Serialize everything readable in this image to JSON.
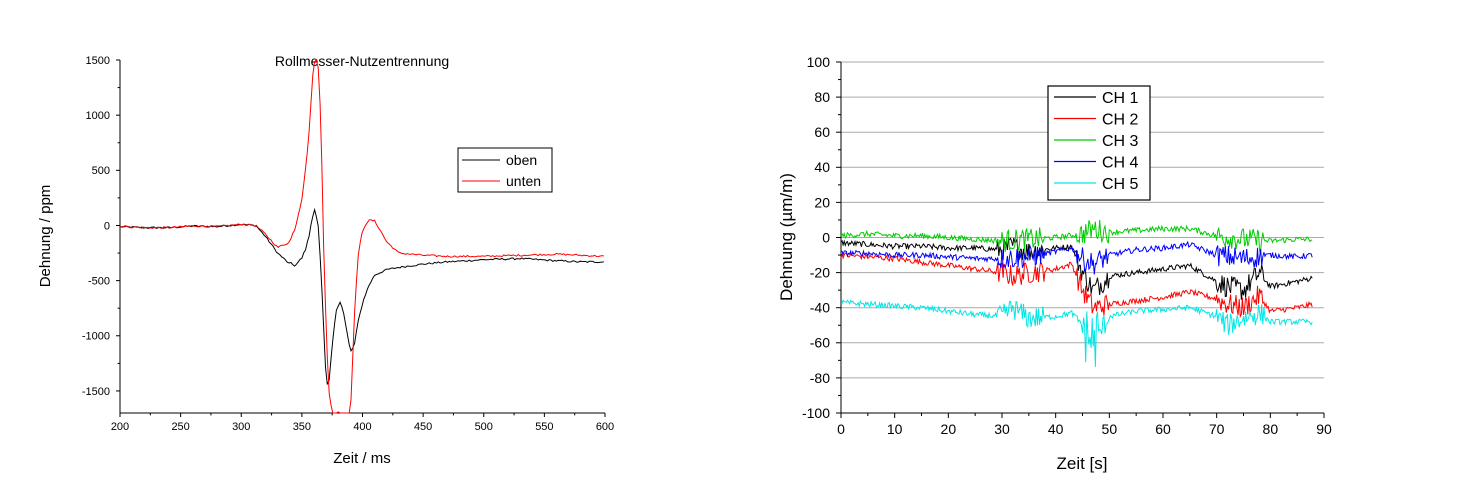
{
  "chart_data": [
    {
      "type": "line",
      "title": "Rollmesser-Nutzentrennung",
      "xlabel": "Zeit / ms",
      "ylabel": "Dehnung / ppm",
      "xlim": [
        200,
        600
      ],
      "ylim": [
        -1700,
        1500
      ],
      "xticks": [
        200,
        250,
        300,
        350,
        400,
        450,
        500,
        550,
        600
      ],
      "yticks": [
        -1500,
        -1000,
        -500,
        0,
        500,
        1000,
        1500
      ],
      "grid": false,
      "legend": "right, upper middle",
      "series": [
        {
          "name": "oben",
          "color": "#000000",
          "x": [
            200,
            220,
            240,
            260,
            280,
            300,
            312,
            320,
            330,
            340,
            345,
            350,
            355,
            358,
            361,
            364,
            367,
            370,
            372,
            375,
            378,
            381,
            384,
            387,
            390,
            393,
            396,
            400,
            405,
            410,
            420,
            430,
            450,
            470,
            500,
            530,
            560,
            580,
            600
          ],
          "y": [
            -10,
            -20,
            -20,
            -5,
            -10,
            10,
            0,
            -100,
            -250,
            -350,
            -360,
            -300,
            -150,
            50,
            150,
            -50,
            -700,
            -1400,
            -1450,
            -1100,
            -800,
            -700,
            -750,
            -950,
            -1150,
            -1100,
            -900,
            -700,
            -550,
            -450,
            -400,
            -380,
            -350,
            -330,
            -310,
            -300,
            -320,
            -330,
            -330
          ]
        },
        {
          "name": "unten",
          "color": "#ff0000",
          "x": [
            200,
            220,
            240,
            260,
            280,
            300,
            312,
            320,
            330,
            340,
            345,
            350,
            355,
            358,
            360,
            362,
            364,
            366,
            368,
            370,
            372,
            375,
            378,
            381,
            384,
            387,
            390,
            393,
            396,
            400,
            403,
            406,
            410,
            415,
            420,
            430,
            450,
            470,
            500,
            530,
            560,
            580,
            600
          ],
          "y": [
            -10,
            -20,
            -20,
            -5,
            -10,
            10,
            0,
            -80,
            -200,
            -150,
            0,
            250,
            700,
            1200,
            1500,
            1500,
            1400,
            800,
            -200,
            -900,
            -1500,
            -1700,
            -1700,
            -1700,
            -1700,
            -1700,
            -1700,
            -900,
            -300,
            -50,
            20,
            50,
            40,
            -50,
            -150,
            -250,
            -270,
            -280,
            -280,
            -270,
            -260,
            -270,
            -280
          ]
        }
      ]
    },
    {
      "type": "line",
      "title": "",
      "xlabel": "Zeit [s]",
      "ylabel": "Dehnung (µm/m)",
      "xlim": [
        0,
        90
      ],
      "ylim": [
        -100,
        100
      ],
      "xticks": [
        0,
        10,
        20,
        30,
        40,
        50,
        60,
        70,
        80,
        90
      ],
      "yticks": [
        -100,
        -80,
        -60,
        -40,
        -20,
        0,
        20,
        40,
        60,
        80,
        100
      ],
      "grid": true,
      "legend": "top-left",
      "series": [
        {
          "name": "CH 1",
          "color": "#000000",
          "x": [
            0,
            5,
            10,
            15,
            20,
            25,
            30,
            32,
            35,
            40,
            43,
            45,
            47,
            50,
            55,
            60,
            65,
            70,
            72,
            75,
            78,
            80,
            85,
            88
          ],
          "y": [
            -3,
            -4,
            -5,
            -5,
            -6,
            -6,
            -7,
            -5,
            -8,
            -6,
            -5,
            -20,
            -30,
            -22,
            -20,
            -18,
            -16,
            -25,
            -28,
            -30,
            -20,
            -28,
            -25,
            -23
          ]
        },
        {
          "name": "CH 2",
          "color": "#ff0000",
          "x": [
            0,
            5,
            10,
            15,
            20,
            25,
            30,
            32,
            35,
            40,
            43,
            45,
            47,
            50,
            55,
            60,
            65,
            70,
            72,
            75,
            78,
            80,
            85,
            88
          ],
          "y": [
            -10,
            -11,
            -12,
            -14,
            -16,
            -18,
            -20,
            -22,
            -20,
            -18,
            -15,
            -30,
            -40,
            -38,
            -36,
            -34,
            -31,
            -35,
            -38,
            -40,
            -33,
            -42,
            -40,
            -38
          ]
        },
        {
          "name": "CH 3",
          "color": "#00cc00",
          "x": [
            0,
            5,
            10,
            15,
            20,
            25,
            30,
            35,
            40,
            45,
            47,
            50,
            55,
            60,
            65,
            70,
            75,
            80,
            85,
            88
          ],
          "y": [
            1,
            2,
            1,
            1,
            0,
            -1,
            -2,
            -1,
            0,
            2,
            5,
            3,
            4,
            5,
            5,
            1,
            -1,
            -2,
            -1,
            -1
          ]
        },
        {
          "name": "CH 4",
          "color": "#0000ff",
          "x": [
            0,
            5,
            10,
            15,
            20,
            25,
            30,
            35,
            40,
            43,
            45,
            47,
            50,
            55,
            60,
            65,
            70,
            75,
            80,
            85,
            88
          ],
          "y": [
            -9,
            -9,
            -10,
            -10,
            -11,
            -12,
            -12,
            -11,
            -8,
            -6,
            -12,
            -15,
            -10,
            -7,
            -6,
            -4,
            -10,
            -12,
            -10,
            -11,
            -10
          ]
        },
        {
          "name": "CH 5",
          "color": "#00e6e6",
          "x": [
            0,
            5,
            10,
            15,
            20,
            25,
            30,
            32,
            35,
            40,
            43,
            45,
            47,
            50,
            55,
            60,
            65,
            70,
            72,
            75,
            78,
            80,
            85,
            88
          ],
          "y": [
            -37,
            -38,
            -39,
            -40,
            -42,
            -44,
            -45,
            -40,
            -46,
            -45,
            -43,
            -50,
            -60,
            -45,
            -42,
            -41,
            -40,
            -45,
            -50,
            -46,
            -43,
            -48,
            -48,
            -48
          ]
        }
      ]
    }
  ]
}
